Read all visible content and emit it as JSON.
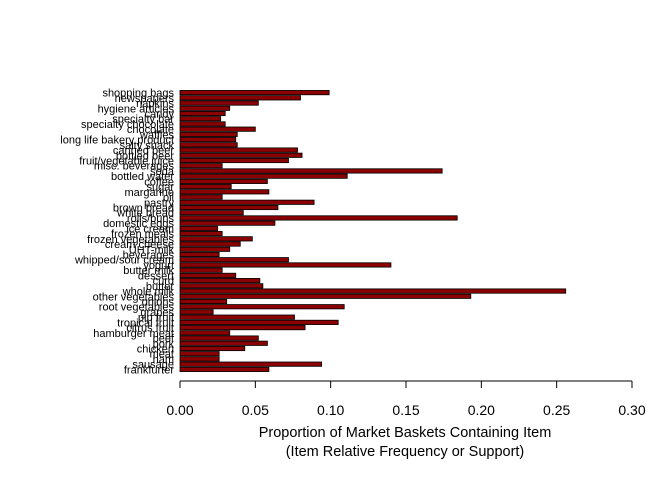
{
  "chart_data": {
    "type": "bar",
    "orientation": "horizontal",
    "bar_color": "#8B0000",
    "bar_border_color": "#000000",
    "title": "",
    "xlabel_line1": "Proportion of Market Baskets Containing Item",
    "xlabel_line2": "(Item Relative Frequency or Support)",
    "ylabel": "",
    "xlim": [
      0,
      0.3
    ],
    "x_ticks": [
      "0.00",
      "0.05",
      "0.10",
      "0.15",
      "0.20",
      "0.25",
      "0.30"
    ],
    "x_tick_values": [
      0,
      0.05,
      0.1,
      0.15,
      0.2,
      0.25,
      0.3
    ],
    "grid": false,
    "categories": [
      "frankfurter",
      "sausage",
      "ham",
      "meat",
      "chicken",
      "pork",
      "beef",
      "hamburger meat",
      "citrus fruit",
      "tropical fruit",
      "pip fruit",
      "grapes",
      "root vegetables",
      "onions",
      "other vegetables",
      "whole milk",
      "butter",
      "curd",
      "dessert",
      "butter milk",
      "yogurt",
      "whipped/sour cream",
      "beverages",
      "UHT-milk",
      "cream cheese",
      "frozen vegetables",
      "frozen meals",
      "ice cream",
      "domestic eggs",
      "rolls/buns",
      "white bread",
      "brown bread",
      "pastry",
      "oil",
      "margarine",
      "sugar",
      "coffee",
      "bottled water",
      "soda",
      "misc. beverages",
      "fruit/vegetable juice",
      "bottled beer",
      "canned beer",
      "salty snack",
      "long life bakery product",
      "waffles",
      "chocolate",
      "specialty chocolate",
      "specialty bar",
      "candy",
      "hygiene articles",
      "napkins",
      "newspapers",
      "shopping bags"
    ],
    "values": [
      0.059,
      0.094,
      0.026,
      0.026,
      0.043,
      0.058,
      0.052,
      0.033,
      0.083,
      0.105,
      0.076,
      0.022,
      0.109,
      0.031,
      0.193,
      0.256,
      0.055,
      0.053,
      0.037,
      0.028,
      0.14,
      0.072,
      0.026,
      0.033,
      0.04,
      0.048,
      0.028,
      0.025,
      0.063,
      0.184,
      0.042,
      0.065,
      0.089,
      0.028,
      0.059,
      0.034,
      0.058,
      0.111,
      0.174,
      0.028,
      0.072,
      0.081,
      0.078,
      0.038,
      0.037,
      0.038,
      0.05,
      0.03,
      0.027,
      0.03,
      0.033,
      0.052,
      0.08,
      0.099
    ]
  }
}
